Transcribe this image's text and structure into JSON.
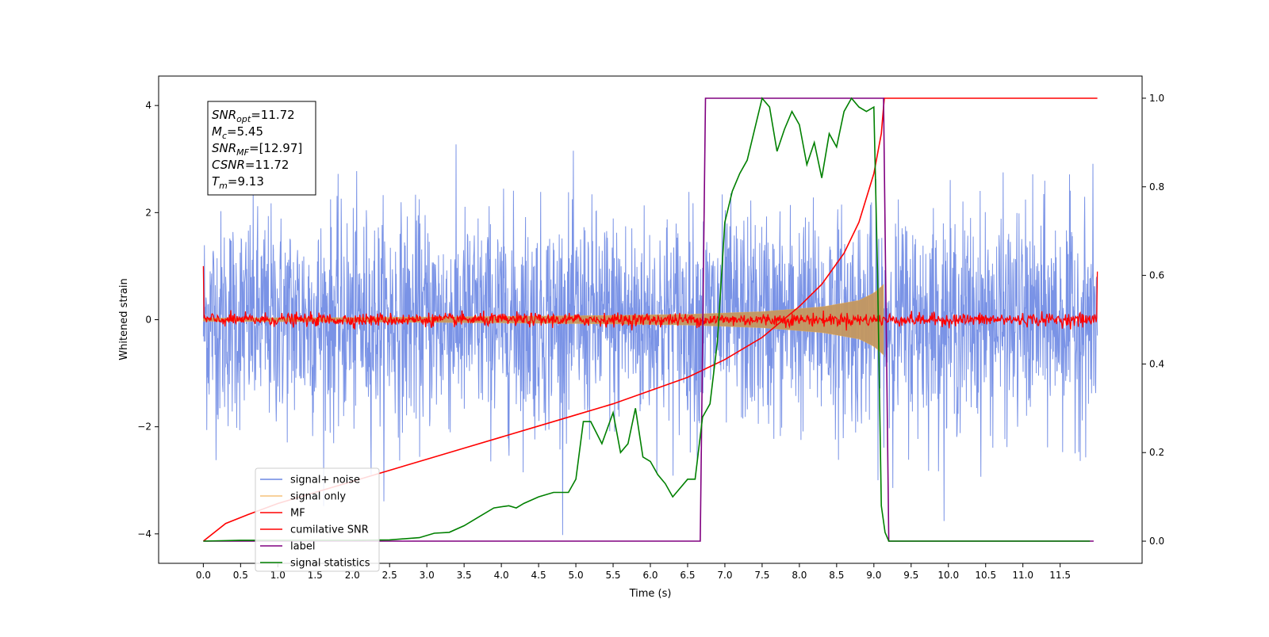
{
  "chart_data": {
    "type": "line",
    "xlabel": "Time (s)",
    "ylabel": "Whitened strain",
    "y2label": "",
    "xlim": [
      -0.6,
      12.6
    ],
    "ylim": [
      -4.55,
      4.55
    ],
    "y2lim": [
      -0.05,
      1.05
    ],
    "x_ticks": [
      0.0,
      0.5,
      1.0,
      1.5,
      2.0,
      2.5,
      3.0,
      3.5,
      4.0,
      4.5,
      5.0,
      5.5,
      6.0,
      6.5,
      7.0,
      7.5,
      8.0,
      8.5,
      9.0,
      9.5,
      10.0,
      10.5,
      11.0,
      11.5
    ],
    "x_tick_labels": [
      "0.0",
      "0.5",
      "1.0",
      "1.5",
      "2.0",
      "2.5",
      "3.0",
      "3.5",
      "4.0",
      "4.5",
      "5.0",
      "5.5",
      "6.0",
      "6.5",
      "7.0",
      "7.5",
      "8.0",
      "8.5",
      "9.0",
      "9.5",
      "10.0",
      "10.5",
      "11.0",
      "11.5"
    ],
    "y_ticks": [
      -4,
      -2,
      0,
      2,
      4
    ],
    "y_tick_labels": [
      "−4",
      "−2",
      "0",
      "2",
      "4"
    ],
    "y2_ticks": [
      0.0,
      0.2,
      0.4,
      0.6,
      0.8,
      1.0
    ],
    "y2_tick_labels": [
      "0.0",
      "0.2",
      "0.4",
      "0.6",
      "0.8",
      "1.0"
    ],
    "grid": false,
    "legend_position": "bottom-left",
    "annotation": {
      "lines": [
        {
          "sym": "SNR",
          "sub": "opt",
          "val": "=11.72"
        },
        {
          "sym": "M",
          "sub": "c",
          "val": "=5.45"
        },
        {
          "sym": "SNR",
          "sub": "MF",
          "val": "=[12.97]"
        },
        {
          "sym": "CSNR",
          "sub": "",
          "val": "=11.72"
        },
        {
          "sym": "T",
          "sub": "m",
          "val": "=9.13"
        }
      ]
    },
    "series": [
      {
        "name": "signal+ noise",
        "axis": "left",
        "color": "#6b87e3",
        "kind": "noise",
        "x_range": [
          0.0,
          12.0
        ],
        "std": 1.0,
        "min": -4.1,
        "max": 4.15
      },
      {
        "name": "signal only",
        "axis": "left",
        "color": "#f5b04a",
        "kind": "chirp-envelope",
        "envelope": {
          "x": [
            0.0,
            2.0,
            4.0,
            5.5,
            6.5,
            7.5,
            8.3,
            8.8,
            9.0,
            9.1,
            9.13
          ],
          "y": [
            0.03,
            0.04,
            0.06,
            0.08,
            0.1,
            0.15,
            0.24,
            0.36,
            0.5,
            0.62,
            0.66
          ]
        }
      },
      {
        "name": "MF",
        "axis": "left",
        "color": "#ff0000",
        "kind": "noise",
        "x_range": [
          0.0,
          12.0
        ],
        "std": 0.06,
        "start": 1.0,
        "end": 0.9
      },
      {
        "name": "cumilative SNR",
        "axis": "right",
        "color": "#ff0000",
        "x": [
          0.0,
          0.3,
          0.6,
          1.0,
          1.5,
          2.0,
          2.5,
          3.0,
          3.5,
          4.0,
          4.5,
          5.0,
          5.5,
          6.0,
          6.5,
          7.0,
          7.5,
          8.0,
          8.3,
          8.6,
          8.8,
          9.0,
          9.1,
          9.13,
          9.14,
          12.0
        ],
        "y": [
          0.0,
          0.04,
          0.06,
          0.085,
          0.11,
          0.135,
          0.16,
          0.185,
          0.21,
          0.235,
          0.26,
          0.285,
          0.31,
          0.34,
          0.37,
          0.41,
          0.46,
          0.53,
          0.58,
          0.65,
          0.72,
          0.83,
          0.92,
          0.98,
          1.0,
          1.0
        ]
      },
      {
        "name": "label",
        "axis": "right",
        "color": "#800080",
        "x": [
          0.0,
          6.67,
          6.74,
          9.13,
          9.2,
          11.95
        ],
        "y": [
          0.0,
          0.0,
          1.0,
          1.0,
          0.0,
          0.0
        ]
      },
      {
        "name": "signal statistics",
        "axis": "right",
        "color": "#008000",
        "x": [
          0.0,
          0.5,
          1.0,
          1.5,
          2.0,
          2.5,
          2.9,
          3.1,
          3.3,
          3.5,
          3.7,
          3.9,
          4.1,
          4.2,
          4.3,
          4.5,
          4.7,
          4.9,
          5.0,
          5.1,
          5.2,
          5.35,
          5.5,
          5.6,
          5.7,
          5.8,
          5.9,
          6.0,
          6.1,
          6.2,
          6.3,
          6.5,
          6.6,
          6.7,
          6.8,
          6.9,
          7.0,
          7.1,
          7.2,
          7.3,
          7.4,
          7.5,
          7.6,
          7.7,
          7.8,
          7.9,
          8.0,
          8.1,
          8.2,
          8.3,
          8.4,
          8.5,
          8.6,
          8.7,
          8.8,
          8.9,
          9.0,
          9.05,
          9.1,
          9.15,
          9.2,
          9.3,
          10.0,
          11.0,
          11.9
        ],
        "y": [
          0.0,
          0.002,
          0.002,
          0.002,
          0.002,
          0.003,
          0.008,
          0.018,
          0.02,
          0.035,
          0.055,
          0.075,
          0.08,
          0.075,
          0.085,
          0.1,
          0.11,
          0.11,
          0.14,
          0.27,
          0.27,
          0.22,
          0.29,
          0.2,
          0.22,
          0.3,
          0.19,
          0.18,
          0.15,
          0.13,
          0.1,
          0.14,
          0.14,
          0.28,
          0.31,
          0.45,
          0.72,
          0.79,
          0.83,
          0.86,
          0.93,
          1.0,
          0.98,
          0.88,
          0.93,
          0.97,
          0.94,
          0.85,
          0.9,
          0.82,
          0.92,
          0.89,
          0.97,
          1.0,
          0.98,
          0.97,
          0.98,
          0.6,
          0.08,
          0.02,
          0.0,
          0.0,
          0.0,
          0.0,
          0.0
        ]
      }
    ]
  }
}
